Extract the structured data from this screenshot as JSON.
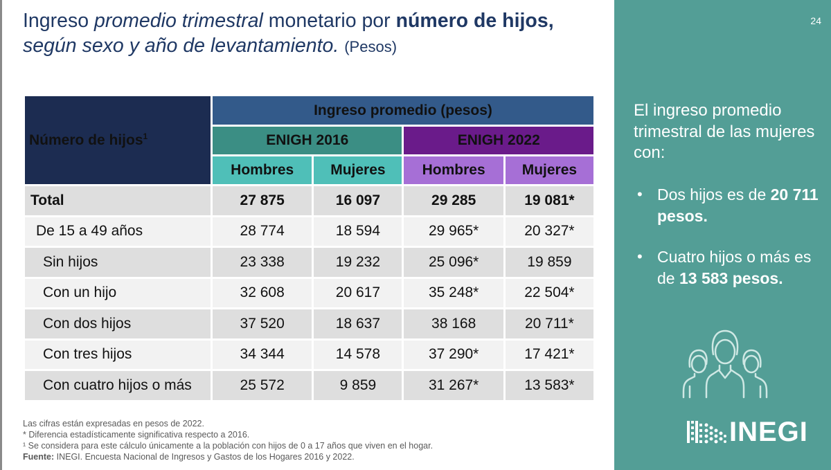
{
  "title": {
    "part1": "Ingreso ",
    "italic1": "promedio trimestral",
    "part2": " monetario por ",
    "bold1": "número de hijos,",
    "italic2": "según sexo y año de levantamiento.",
    "units": "(Pesos)"
  },
  "page_number": "24",
  "table": {
    "corner_label": "Número de hijos",
    "corner_sup": "1",
    "super_header": "Ingreso promedio (pesos)",
    "group_2016": "ENIGH 2016",
    "group_2022": "ENIGH 2022",
    "sub_hombres": "Hombres",
    "sub_mujeres": "Mujeres",
    "rows": [
      {
        "label": "Total",
        "h2016": "27 875",
        "m2016": "16 097",
        "h2022": "29 285",
        "m2022": "19 081*"
      },
      {
        "label": "De 15 a 49 años",
        "h2016": "28 774",
        "m2016": "18 594",
        "h2022": "29 965*",
        "m2022": "20 327*"
      },
      {
        "label": "Sin hijos",
        "h2016": "23 338",
        "m2016": "19 232",
        "h2022": "25 096*",
        "m2022": "19 859"
      },
      {
        "label": "Con un hijo",
        "h2016": "32 608",
        "m2016": "20 617",
        "h2022": "35 248*",
        "m2022": "22 504*"
      },
      {
        "label": "Con dos hijos",
        "h2016": "37 520",
        "m2016": "18 637",
        "h2022": "38 168",
        "m2022": "20 711*"
      },
      {
        "label": "Con tres hijos",
        "h2016": "34 344",
        "m2016": "14 578",
        "h2022": "37 290*",
        "m2022": "17 421*"
      },
      {
        "label": "Con cuatro hijos o más",
        "h2016": "25 572",
        "m2016": "9 859",
        "h2022": "31 267*",
        "m2022": "13 583*"
      }
    ]
  },
  "notes": {
    "line1": "Las cifras están expresadas en pesos de 2022.",
    "line2": "* Diferencia estadísticamente significativa respecto a 2016.",
    "line3": "¹ Se considera para este cálculo únicamente a la población con hijos de 0 a 17 años que viven en el hogar.",
    "source_label": "Fuente:",
    "source_text": " INEGI. Encuesta Nacional de Ingresos y Gastos de los Hogares 2016 y 2022."
  },
  "panel": {
    "intro": "El ingreso promedio trimestral de las mujeres con:",
    "bullets": [
      {
        "text": "Dos hijos es de ",
        "bold": "20 711 pesos."
      },
      {
        "text": "Cuatro hijos o más es de ",
        "bold": "13 583 pesos."
      }
    ],
    "icon": "women-group-icon",
    "logo_text": "INEGI"
  },
  "colors": {
    "title": "#1f3864",
    "corner_bg": "#1c2c51",
    "super_bg": "#335a8a",
    "enigh2016_bg": "#3b8e84",
    "enigh2022_bg": "#6a1b8a",
    "sub2016_bg": "#4fbfb8",
    "sub2022_bg": "#a66fd6",
    "panel_bg": "#539e96"
  }
}
